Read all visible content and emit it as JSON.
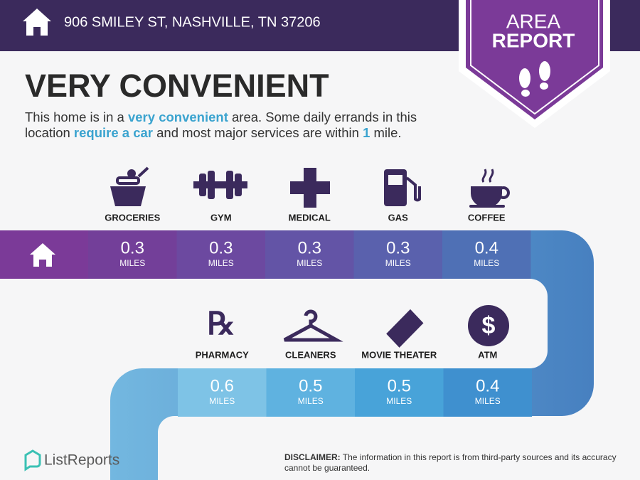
{
  "header": {
    "address": "906 SMILEY ST, NASHVILLE, TN 37206",
    "badge": [
      "AREA",
      "REPORT"
    ]
  },
  "headline": "VERY CONVENIENT",
  "description": {
    "lines": [
      [
        {
          "text": "This home is in a ",
          "highlight": false
        },
        {
          "text": "very convenient",
          "highlight": true
        },
        {
          "text": " area. Some daily errands in this",
          "highlight": false
        }
      ],
      [
        {
          "text": "location ",
          "highlight": false
        },
        {
          "text": "require a car",
          "highlight": true
        },
        {
          "text": " and most major services are within ",
          "highlight": false
        },
        {
          "text": "1",
          "highlight": true
        },
        {
          "text": " mile.",
          "highlight": false
        }
      ]
    ]
  },
  "unit": "MILES",
  "rows": [
    [
      {
        "name": "GROCERIES",
        "distance": "0.3"
      },
      {
        "name": "GYM",
        "distance": "0.3"
      },
      {
        "name": "MEDICAL",
        "distance": "0.3"
      },
      {
        "name": "GAS",
        "distance": "0.3"
      },
      {
        "name": "COFFEE",
        "distance": "0.4"
      }
    ],
    [
      {
        "name": "PHARMACY",
        "distance": "0.6"
      },
      {
        "name": "CLEANERS",
        "distance": "0.5"
      },
      {
        "name": "MOVIE THEATER",
        "distance": "0.5"
      },
      {
        "name": "ATM",
        "distance": "0.4"
      }
    ]
  ],
  "footer": {
    "brand": "ListReports",
    "disclaimer_label": "DISCLAIMER:",
    "disclaimer": " The information in this report is from third-party sources and its accuracy cannot be guaranteed."
  }
}
